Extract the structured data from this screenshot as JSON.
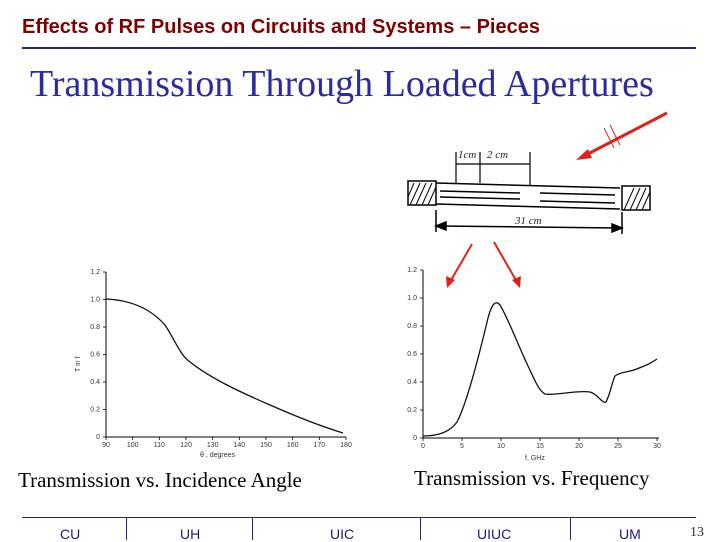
{
  "header": {
    "title": "Effects of RF Pulses on Circuits and Systems – Pieces"
  },
  "slide": {
    "title": "Transmission Through Loaded Apertures"
  },
  "diagram": {
    "label_1cm": "1cm",
    "label_2cm": "2 cm",
    "label_31cm": "31 cm"
  },
  "left_plot": {
    "ylabel": "T in f",
    "xlabel": "θ , degrees",
    "yticks": [
      "0",
      "0.2",
      "0.4",
      "0.6",
      "0.8",
      "1.0",
      "1.2"
    ],
    "xticks": [
      "90",
      "100",
      "110",
      "120",
      "130",
      "140",
      "150",
      "160",
      "170",
      "180"
    ],
    "caption": "Transmission vs. Incidence Angle"
  },
  "right_plot": {
    "xlabel": "f, GHz",
    "yticks": [
      "0",
      "0.2",
      "0.4",
      "0.6",
      "0.8",
      "1.0",
      "1.2"
    ],
    "xticks": [
      "0",
      "5",
      "10",
      "15",
      "20",
      "25",
      "30"
    ],
    "caption": "Transmission vs. Frequency"
  },
  "footer": {
    "items": [
      "CU",
      "UH",
      "UIC",
      "UIUC",
      "UM"
    ],
    "page_number": "13"
  },
  "colors": {
    "header": "#800000",
    "title": "#2b2ba0",
    "rule": "#23238a",
    "arrow": "#e0201a"
  }
}
